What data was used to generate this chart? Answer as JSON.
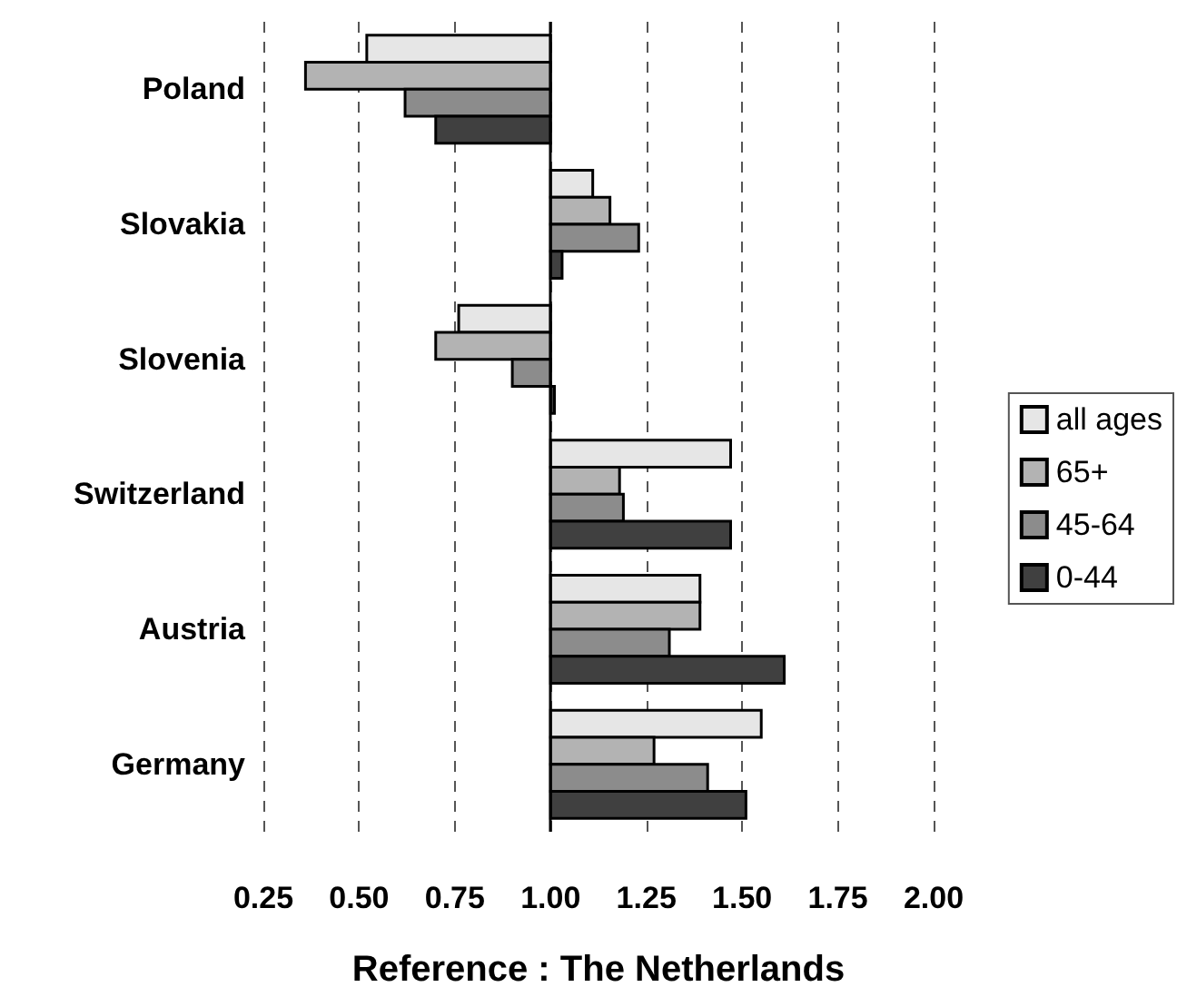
{
  "chart_data": {
    "type": "bar",
    "orientation": "horizontal",
    "xlabel": "Reference : The Netherlands",
    "categories": [
      "Poland",
      "Slovakia",
      "Slovenia",
      "Switzerland",
      "Austria",
      "Germany"
    ],
    "series": [
      {
        "name": "all ages",
        "color": "#e6e6e6",
        "base": [
          1,
          1,
          1,
          1,
          1,
          1
        ],
        "values": [
          -0.48,
          0.11,
          -0.24,
          0.47,
          0.39,
          0.55
        ]
      },
      {
        "name": "65+",
        "color": "#b3b3b3",
        "base": [
          1,
          1,
          1,
          1,
          1,
          1
        ],
        "values": [
          -0.64,
          0.155,
          -0.3,
          0.18,
          0.39,
          0.27
        ]
      },
      {
        "name": "45-64",
        "color": "#8c8c8c",
        "base": [
          1,
          1,
          1,
          1,
          1,
          1
        ],
        "values": [
          -0.38,
          0.23,
          -0.1,
          0.19,
          0.31,
          0.41
        ]
      },
      {
        "name": "0-44",
        "color": "#404040",
        "base": [
          1,
          1,
          1,
          1,
          1,
          1
        ],
        "values": [
          -0.3,
          0.03,
          0.01,
          0.47,
          0.61,
          0.51
        ]
      }
    ],
    "xlim": [
      0.25,
      2.0
    ],
    "xticks": [
      {
        "value": 0.25,
        "label": "0.25"
      },
      {
        "value": 0.5,
        "label": "0.50"
      },
      {
        "value": 0.75,
        "label": "0.75"
      },
      {
        "value": 1.0,
        "label": "1.00"
      },
      {
        "value": 1.25,
        "label": "1.25"
      },
      {
        "value": 1.5,
        "label": "1.50"
      },
      {
        "value": 1.75,
        "label": "1.75"
      },
      {
        "value": 2.0,
        "label": "2.00"
      }
    ],
    "ref_lines": [
      {
        "axis": "x",
        "value": 1,
        "color": "#000000",
        "line_style": "solid"
      }
    ],
    "grid": "x",
    "legend": "right"
  }
}
